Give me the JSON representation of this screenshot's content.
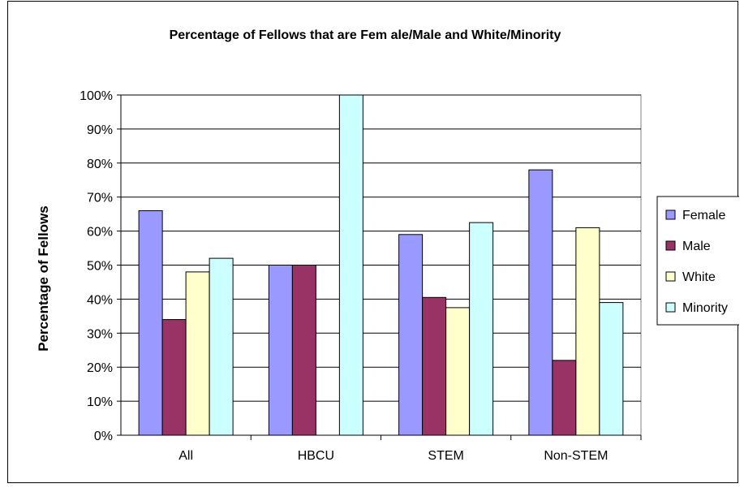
{
  "chart_data": {
    "type": "bar",
    "title": "Percentage of Fellows that are Fem ale/Male and White/Minority",
    "xlabel": "",
    "ylabel": "Percentage of Fellows",
    "categories": [
      "All",
      "HBCU",
      "STEM",
      "Non-STEM"
    ],
    "y_ticks": [
      "0%",
      "10%",
      "20%",
      "30%",
      "40%",
      "50%",
      "60%",
      "70%",
      "80%",
      "90%",
      "100%"
    ],
    "ylim": [
      0,
      100
    ],
    "grid": true,
    "legend_position": "right",
    "series": [
      {
        "name": "Female",
        "color": "#9999ff",
        "values": [
          66,
          50,
          59,
          78
        ]
      },
      {
        "name": "Male",
        "color": "#993366",
        "values": [
          34,
          50,
          40.5,
          22
        ]
      },
      {
        "name": "White",
        "color": "#ffffcc",
        "values": [
          48,
          0,
          37.5,
          61
        ]
      },
      {
        "name": "Minority",
        "color": "#ccffff",
        "values": [
          52,
          100,
          62.5,
          39
        ]
      }
    ]
  }
}
